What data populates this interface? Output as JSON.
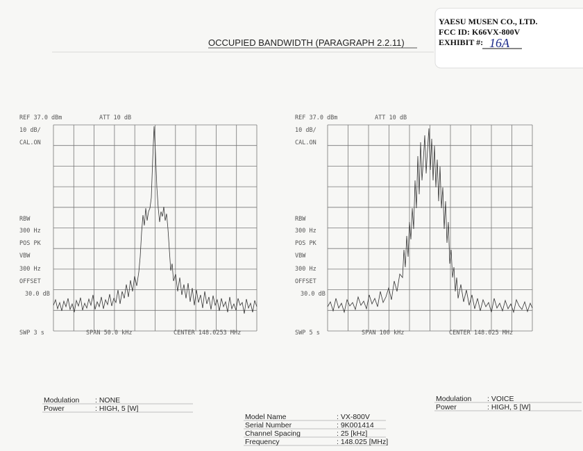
{
  "stamp": {
    "company": "YAESU MUSEN CO., LTD.",
    "fcc_id": "FCC ID: K66VX-800V",
    "exhibit_label": "EXHIBIT #:",
    "exhibit_value": "16A"
  },
  "title": "OCCUPIED BANDWIDTH (PARAGRAPH 2.2.11)",
  "plots": [
    {
      "ref": "REF  37.0 dBm",
      "att": "ATT 10 dB",
      "scale": "10 dB/",
      "cal": "CAL.ON",
      "rbw_label": "RBW",
      "rbw": "300 Hz",
      "detector": "POS PK",
      "vbw_label": "VBW",
      "vbw": "300 Hz",
      "offset_label": "OFFSET",
      "offset": "30.0 dB",
      "swp": "SWP 3 s",
      "span": "SPAN 50.0 kHz",
      "center": "CENTER 148.0253 MHz"
    },
    {
      "ref": "REF  37.0 dBm",
      "att": "ATT 10 dB",
      "scale": "10 dB/",
      "cal": "CAL.ON",
      "rbw_label": "RBW",
      "rbw": "300 Hz",
      "detector": "POS PK",
      "vbw_label": "VBW",
      "vbw": "300 Hz",
      "offset_label": "OFFSET",
      "offset": "30.0 dB",
      "swp": "SWP 5 s",
      "span": "SPAN 100 kHz",
      "center": "CENTER 148.025 MHz"
    }
  ],
  "left_info": {
    "rows": [
      [
        "Modulation",
        ": NONE"
      ],
      [
        "Power",
        ": HIGH, 5 [W]"
      ]
    ]
  },
  "right_info": {
    "rows": [
      [
        "Modulation",
        ": VOICE"
      ],
      [
        "Power",
        ": HIGH, 5 [W]"
      ]
    ]
  },
  "model_info": {
    "rows": [
      [
        "Model Name",
        ": VX-800V"
      ],
      [
        "Serial Number",
        ": 9K001414"
      ],
      [
        "Channel Spacing",
        ": 25 [kHz]"
      ],
      [
        "Frequency",
        ": 148.025 [MHz]"
      ]
    ]
  }
}
